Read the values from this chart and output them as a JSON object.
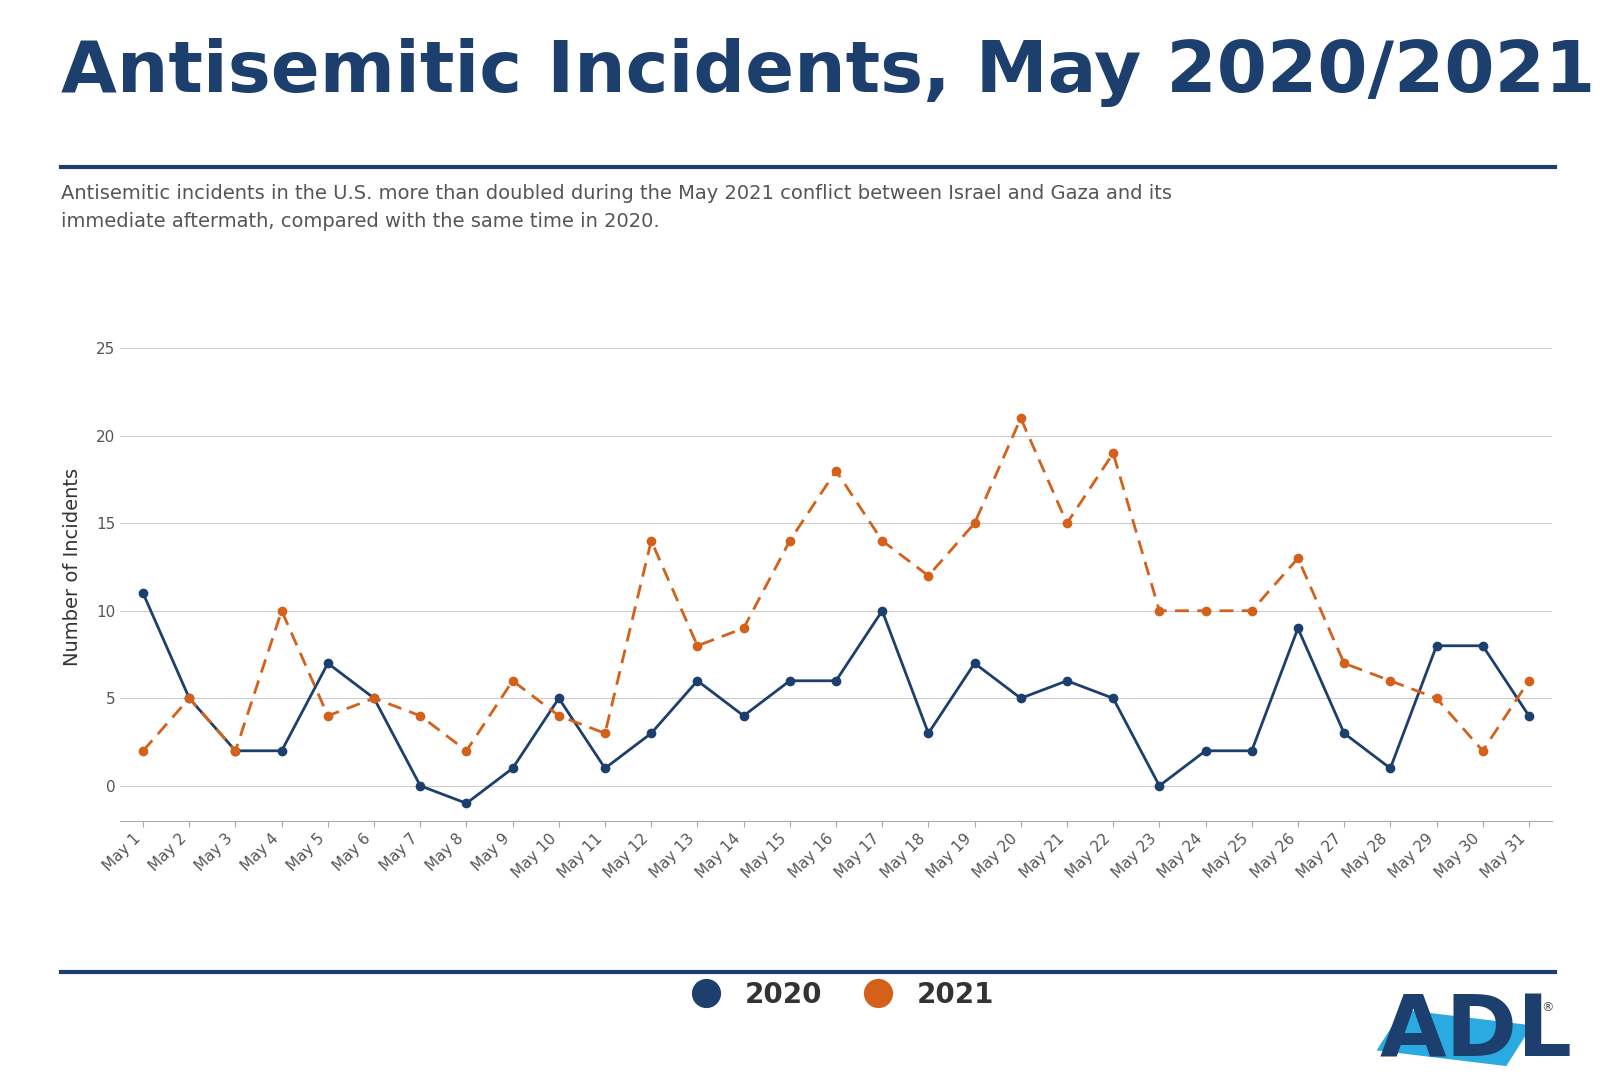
{
  "title": "Antisemitic Incidents, May 2020/2021",
  "subtitle": "Antisemitic incidents in the U.S. more than doubled during the May 2021 conflict between Israel and Gaza and its\nimmediate aftermath, compared with the same time in 2020.",
  "ylabel": "Number of Incidents",
  "days": [
    "May 1",
    "May 2",
    "May 3",
    "May 4",
    "May 5",
    "May 6",
    "May 7",
    "May 8",
    "May 9",
    "May 10",
    "May 11",
    "May 12",
    "May 13",
    "May 14",
    "May 15",
    "May 16",
    "May 17",
    "May 18",
    "May 19",
    "May 20",
    "May 21",
    "May 22",
    "May 23",
    "May 24",
    "May 25",
    "May 26",
    "May 27",
    "May 28",
    "May 29",
    "May 30",
    "May 31"
  ],
  "data_2020": [
    11,
    5,
    2,
    2,
    7,
    5,
    0,
    -1,
    1,
    5,
    1,
    3,
    6,
    4,
    6,
    6,
    10,
    3,
    7,
    5,
    6,
    5,
    0,
    2,
    2,
    9,
    3,
    1,
    8,
    8,
    4
  ],
  "data_2021": [
    2,
    5,
    2,
    10,
    4,
    5,
    4,
    2,
    6,
    4,
    3,
    14,
    8,
    9,
    14,
    18,
    14,
    12,
    15,
    21,
    15,
    19,
    10,
    10,
    10,
    13,
    7,
    6,
    5,
    2,
    6
  ],
  "color_2020": "#1c3f6e",
  "color_2021": "#d4601a",
  "title_color": "#1c3f6e",
  "subtitle_color": "#555555",
  "background_color": "#ffffff",
  "grid_color": "#cccccc",
  "rule_color": "#1c3f6e",
  "ylim": [
    -2,
    27
  ],
  "yticks": [
    0,
    5,
    10,
    15,
    20,
    25
  ],
  "line_width": 2.0,
  "marker_size": 7,
  "adl_dark": "#1c3f6e",
  "adl_light": "#29abe2",
  "title_fontsize": 52,
  "subtitle_fontsize": 14,
  "ylabel_fontsize": 14,
  "legend_fontsize": 20,
  "tick_fontsize": 11
}
